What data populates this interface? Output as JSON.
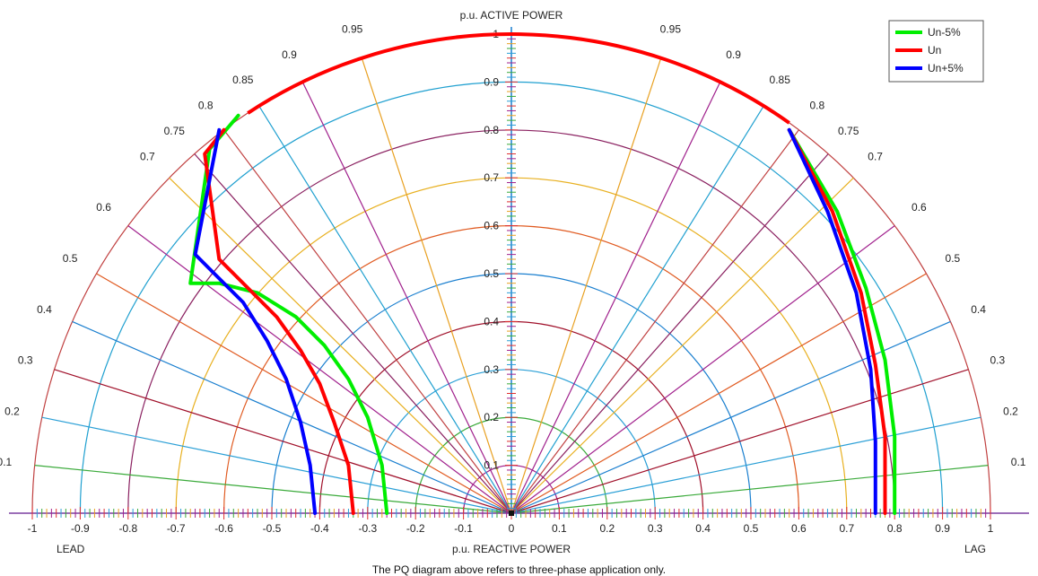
{
  "chart_data": {
    "type": "line",
    "title": "p.u. ACTIVE POWER",
    "xlabel": "p.u. REACTIVE POWER",
    "side_labels": {
      "left": "LEAD",
      "right": "LAG"
    },
    "xlim": [
      -1,
      1
    ],
    "ylim": [
      0,
      1
    ],
    "x_ticks": [
      "-1",
      "-0.9",
      "-0.8",
      "-0.7",
      "-0.6",
      "-0.5",
      "-0.4",
      "-0.3",
      "-0.2",
      "-0.1",
      "0",
      "0.1",
      "0.2",
      "0.3",
      "0.4",
      "0.5",
      "0.6",
      "0.7",
      "0.8",
      "0.9",
      "1"
    ],
    "y_ticks": [
      "0.1",
      "0.2",
      "0.3",
      "0.4",
      "0.5",
      "0.6",
      "0.7",
      "0.8",
      "0.9",
      "1"
    ],
    "power_factor_labels": [
      "0.1",
      "0.2",
      "0.3",
      "0.4",
      "0.5",
      "0.6",
      "0.7",
      "0.75",
      "0.8",
      "0.85",
      "0.9",
      "0.95"
    ],
    "legend_position": "top-right",
    "series": [
      {
        "name": "Un-5%",
        "color": "#00ee00",
        "x": [
          -0.26,
          -0.27,
          -0.3,
          -0.34,
          -0.39,
          -0.45,
          -0.53,
          -0.61,
          -0.67,
          -0.63,
          -0.57
        ],
        "y": [
          0.0,
          0.1,
          0.2,
          0.28,
          0.35,
          0.41,
          0.46,
          0.48,
          0.48,
          0.76,
          0.83
        ],
        "x2": [
          0.58,
          0.68,
          0.74,
          0.78,
          0.8,
          0.8
        ],
        "y2": [
          0.8,
          0.63,
          0.47,
          0.32,
          0.16,
          0.0
        ]
      },
      {
        "name": "Un",
        "color": "#ff0000",
        "x": [
          -0.33,
          -0.34,
          -0.37,
          -0.4,
          -0.44,
          -0.49,
          -0.55,
          -0.61,
          -0.64,
          -0.6
        ],
        "y": [
          0.0,
          0.1,
          0.19,
          0.27,
          0.34,
          0.41,
          0.47,
          0.53,
          0.75,
          0.8
        ],
        "x2": [
          0.58,
          0.67,
          0.73,
          0.76,
          0.78,
          0.78
        ],
        "y2": [
          0.8,
          0.63,
          0.46,
          0.31,
          0.16,
          0.0
        ]
      },
      {
        "name": "Un+5%",
        "color": "#0000ff",
        "x": [
          -0.41,
          -0.42,
          -0.44,
          -0.47,
          -0.51,
          -0.56,
          -0.62,
          -0.66,
          -0.61
        ],
        "y": [
          0.0,
          0.1,
          0.19,
          0.28,
          0.36,
          0.44,
          0.5,
          0.54,
          0.8
        ],
        "x2": [
          0.58,
          0.66,
          0.72,
          0.75,
          0.76,
          0.76
        ],
        "y2": [
          0.8,
          0.63,
          0.46,
          0.3,
          0.15,
          0.0
        ]
      }
    ],
    "red_arc": {
      "name": "Un",
      "x_from": -0.55,
      "x_to": 0.58
    }
  },
  "caption": "The PQ diagram above refers to three-phase application only.",
  "arc_colors": [
    "#e8a020",
    "#a0208c",
    "#3aaa3a",
    "#2a9fd6",
    "#a0102a",
    "#1a7fcf",
    "#e05a20",
    "#e8b020",
    "#8a2060",
    "#20a0d0",
    "#c04040",
    "#e8a020"
  ],
  "ray_colors": [
    "#3aaa3a",
    "#2a9fd6",
    "#a0102a",
    "#1a7fcf",
    "#e05a20",
    "#a0208c",
    "#e8b020",
    "#8a2060",
    "#c04040",
    "#20a0d0",
    "#a0208c",
    "#e8a020"
  ]
}
